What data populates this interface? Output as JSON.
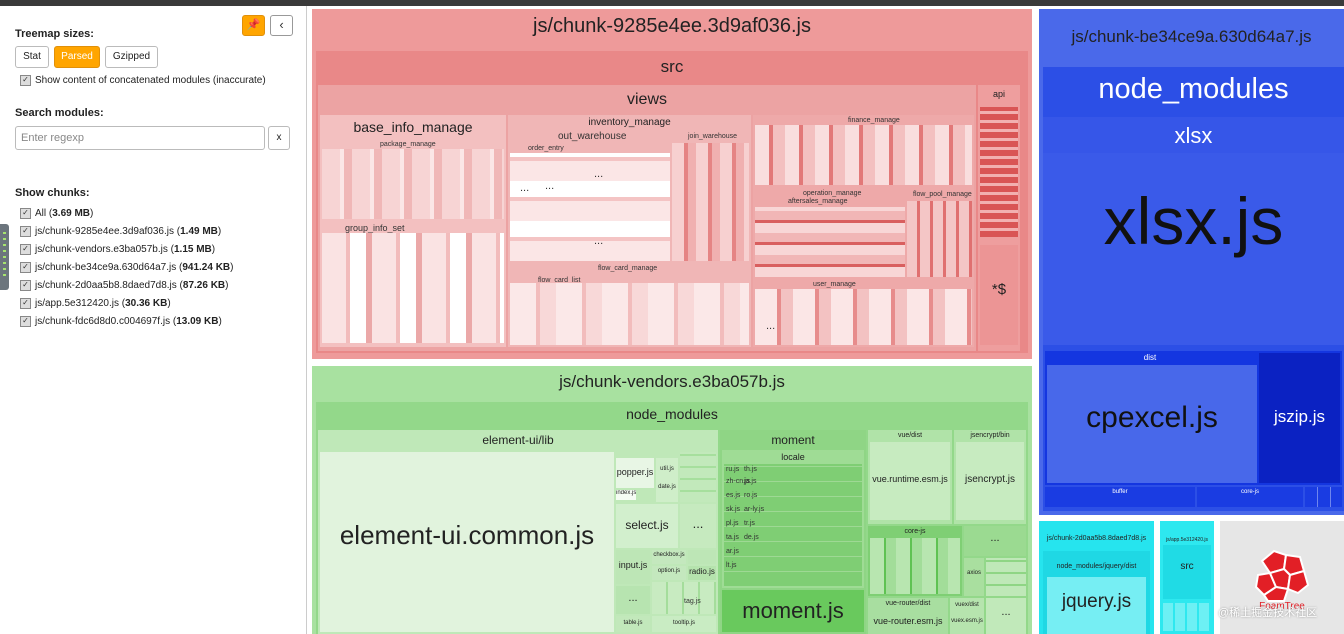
{
  "sidebar": {
    "treemap_sizes_label": "Treemap sizes:",
    "size_buttons": [
      "Stat",
      "Parsed",
      "Gzipped"
    ],
    "show_concat_label": "Show content of concatenated modules (inaccurate)",
    "search_label": "Search modules:",
    "search_placeholder": "Enter regexp",
    "clear_label": "x",
    "show_chunks_label": "Show chunks:",
    "chunks": [
      {
        "name": "All",
        "size": "3.69 MB"
      },
      {
        "name": "js/chunk-9285e4ee.3d9af036.js",
        "size": "1.49 MB"
      },
      {
        "name": "js/chunk-vendors.e3ba057b.js",
        "size": "1.15 MB"
      },
      {
        "name": "js/chunk-be34ce9a.630d64a7.js",
        "size": "941.24 KB"
      },
      {
        "name": "js/chunk-2d0aa5b8.8daed7d8.js",
        "size": "87.26 KB"
      },
      {
        "name": "js/app.5e312420.js",
        "size": "30.36 KB"
      },
      {
        "name": "js/chunk-fdc6d8d0.c004697f.js",
        "size": "13.09 KB"
      }
    ]
  },
  "treemap": {
    "red": {
      "title": "js/chunk-9285e4ee.3d9af036.js",
      "src": "src",
      "views": "views",
      "api": "api",
      "api_sub": "*$",
      "base_info_manage": "base_info_manage",
      "package_manage": "package_manage",
      "group_info_set": "group_info_set",
      "inventory_manage": "inventory_manage",
      "out_warehouse": "out_warehouse",
      "order_entry": "order_entry",
      "join_warehouse": "join_warehouse",
      "finance_manage": "finance_manage",
      "operation_manage": "operation_manage",
      "aftersales_manage": "aftersales_manage",
      "flow_pool_manage": "flow_pool_manage",
      "flow_card_manage": "flow_card_manage",
      "flow_card_list": "flow_card_list",
      "user_manage": "user_manage",
      "dots": "..."
    },
    "green": {
      "title": "js/chunk-vendors.e3ba057b.js",
      "node_modules": "node_modules",
      "element_lib": "element-ui/lib",
      "element_common": "element-ui.common.js",
      "popper": "popper.js",
      "select": "select.js",
      "input": "input.js",
      "radio": "radio.js",
      "checkbox": "checkbox.js",
      "option": "option.js",
      "tooltip": "tooltip.js",
      "tag": "tag.js",
      "table": "table.js",
      "util": "util.js",
      "date": "date.js",
      "index": "index.js",
      "moment": "moment",
      "locale": "locale",
      "moment_js": "moment.js",
      "vue_dist": "vue/dist",
      "vue_runtime": "vue.runtime.esm.js",
      "jsencrypt_bin": "jsencrypt/bin",
      "jsencrypt": "jsencrypt.js",
      "core_js": "core-js",
      "vue_router_dist": "vue-router/dist",
      "vue_router": "vue-router.esm.js",
      "axios": "axios",
      "vuex_dist": "vuex/dist",
      "vuex": "vuex.esm.js",
      "dots": "...",
      "locale_files": [
        "ru.js",
        "zh-cn.js",
        "es.js",
        "sk.js",
        "pl.js",
        "ta.js",
        "ar.js",
        "lt.js",
        "th.js",
        "ja.js",
        "ro.js",
        "ar-ly.js",
        "tr.js",
        "de.js"
      ]
    },
    "blue": {
      "title": "js/chunk-be34ce9a.630d64a7.js",
      "node_modules": "node_modules",
      "xlsx": "xlsx",
      "xlsx_js": "xlsx.js",
      "dist": "dist",
      "cpexcel": "cpexcel.js",
      "jszip": "jszip.js",
      "buffer": "buffer",
      "core_js": "core-js"
    },
    "cyan": {
      "title": "js/chunk-2d0aa5b8.8daed7d8.js",
      "path": "node_modules/jquery/dist",
      "jquery": "jquery.js"
    },
    "app": {
      "title": "js/app.5e312420.js",
      "src": "src"
    },
    "foamtree": "FoamTree",
    "watermark": "@稀土掘金技术社区"
  },
  "colors": {
    "red": "#ee9a9a",
    "green": "#a8e1a0",
    "blue": "#4a69ea",
    "cyan": "#26e4ee",
    "orange": "#ffa500"
  }
}
